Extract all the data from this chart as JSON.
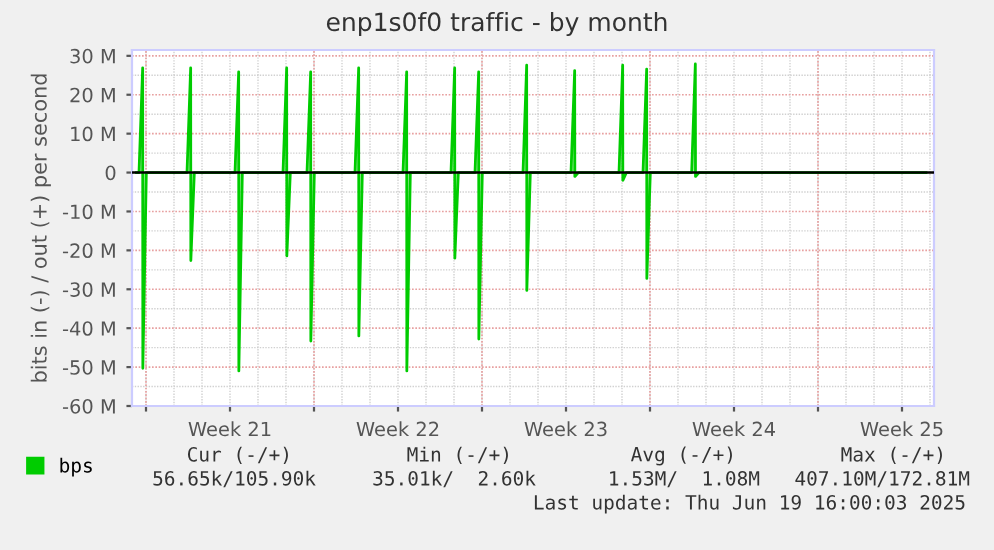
{
  "chart_data": {
    "type": "area",
    "title": "enp1s0f0 traffic - by month",
    "ylabel": "bits in (-) / out (+) per second",
    "x": [
      "2025-05-18T14:30",
      "2025-05-18T17:00",
      "2025-05-18T20:40",
      "2025-05-18T20:50",
      "2025-05-19T00:20",
      "2025-05-20T17:00",
      "2025-05-20T20:40",
      "2025-05-20T20:50",
      "2025-05-21T00:20",
      "2025-05-22T17:00",
      "2025-05-22T20:40",
      "2025-05-22T20:50",
      "2025-05-23T00:20",
      "2025-05-24T17:00",
      "2025-05-24T20:40",
      "2025-05-24T20:50",
      "2025-05-25T00:20",
      "2025-05-25T17:00",
      "2025-05-25T20:40",
      "2025-05-25T20:50",
      "2025-05-26T00:20",
      "2025-05-27T17:00",
      "2025-05-27T20:40",
      "2025-05-27T20:50",
      "2025-05-28T00:20",
      "2025-05-29T17:00",
      "2025-05-29T20:40",
      "2025-05-29T20:50",
      "2025-05-30T00:20",
      "2025-05-31T17:00",
      "2025-05-31T20:40",
      "2025-05-31T20:50",
      "2025-06-01T00:20",
      "2025-06-01T17:00",
      "2025-06-01T20:40",
      "2025-06-01T20:50",
      "2025-06-02T00:20",
      "2025-06-03T17:00",
      "2025-06-03T20:40",
      "2025-06-03T20:50",
      "2025-06-04T00:20",
      "2025-06-05T17:00",
      "2025-06-05T20:40",
      "2025-06-05T20:50",
      "2025-06-06T00:20",
      "2025-06-07T17:00",
      "2025-06-07T20:40",
      "2025-06-07T20:50",
      "2025-06-08T00:20",
      "2025-06-08T17:00",
      "2025-06-08T20:40",
      "2025-06-08T20:50",
      "2025-06-09T00:20",
      "2025-06-10T17:40",
      "2025-06-10T21:20",
      "2025-06-10T21:30",
      "2025-06-11T01:00",
      "2025-06-20T12:00"
    ],
    "series": [
      {
        "name": "bps",
        "color": "#00cc00",
        "values": [
          0,
          0,
          26.9,
          -50.3,
          0,
          0,
          26.9,
          -22.6,
          0,
          0,
          25.9,
          -51,
          0,
          0,
          26.9,
          -21.4,
          0,
          0,
          25.9,
          -43.3,
          0,
          0,
          26.9,
          -42,
          0,
          0,
          25.9,
          -51,
          0,
          0,
          26.9,
          -22,
          0,
          0,
          25.9,
          -42.8,
          0,
          0,
          27.6,
          -30.3,
          0,
          0,
          26.2,
          -1,
          0,
          0,
          27.6,
          -2,
          0,
          0,
          26.6,
          -27.2,
          0,
          0,
          27.9,
          -1,
          0,
          0
        ]
      }
    ],
    "xlim": [
      "2025-05-18T10:00",
      "2025-06-20T20:00"
    ],
    "xticks": [
      {
        "value": "2025-05-19",
        "label": null
      },
      {
        "value": "2025-05-22T12:00",
        "label": "Week 21"
      },
      {
        "value": "2025-05-26",
        "label": null
      },
      {
        "value": "2025-05-29T12:00",
        "label": "Week 22"
      },
      {
        "value": "2025-06-02",
        "label": null
      },
      {
        "value": "2025-06-05T12:00",
        "label": "Week 23"
      },
      {
        "value": "2025-06-09",
        "label": null
      },
      {
        "value": "2025-06-12T12:00",
        "label": "Week 24"
      },
      {
        "value": "2025-06-16",
        "label": null
      },
      {
        "value": "2025-06-19T12:00",
        "label": "Week 25"
      }
    ],
    "ylim": [
      -60,
      31.5
    ],
    "yticks": [
      {
        "value": -60,
        "label": "-60 M"
      },
      {
        "value": -50,
        "label": "-50 M"
      },
      {
        "value": -40,
        "label": "-40 M"
      },
      {
        "value": -30,
        "label": "-30 M"
      },
      {
        "value": -20,
        "label": "-20 M"
      },
      {
        "value": -10,
        "label": "-10 M"
      },
      0,
      {
        "value": 10,
        "label": "10 M"
      },
      {
        "value": 20,
        "label": "20 M"
      },
      {
        "value": 30,
        "label": "30 M"
      }
    ],
    "ref_lines": [
      {
        "axis": "y",
        "value": 0,
        "color": "#000000"
      }
    ],
    "grid": true,
    "legend": "bottom left",
    "marker": "none",
    "line_style": "solid",
    "annotations": [
      "Cur (-/+)",
      "Min (-/+)",
      "Avg (-/+)",
      "Max (-/+)",
      "56.65k/105.90k",
      "35.01k/  2.60k",
      "1.53M/  1.08M",
      "407.10M/172.81M",
      "Last update: Thu Jun 19 16:00:03 2025"
    ]
  }
}
